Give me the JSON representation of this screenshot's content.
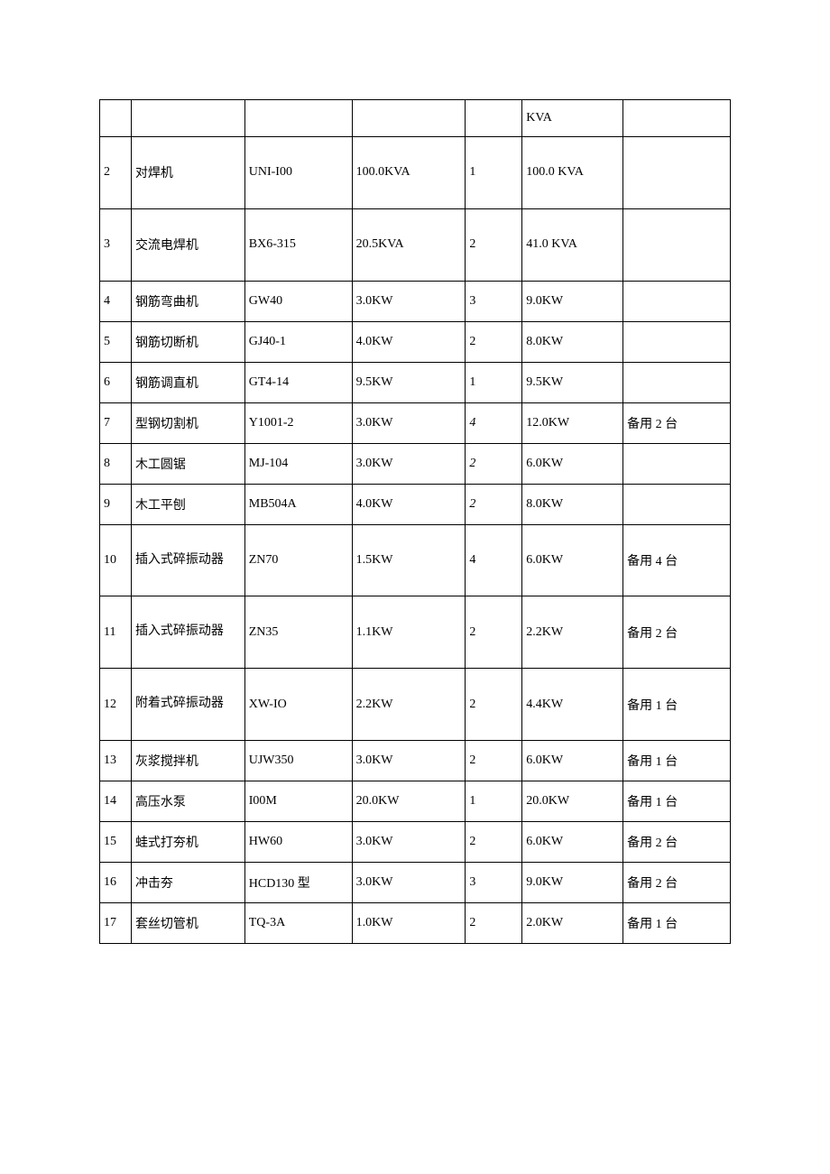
{
  "table": {
    "columns": [
      {
        "width": "5%"
      },
      {
        "width": "18%"
      },
      {
        "width": "17%"
      },
      {
        "width": "18%"
      },
      {
        "width": "9%"
      },
      {
        "width": "16%"
      },
      {
        "width": "17%"
      }
    ],
    "border_color": "#000000",
    "background_color": "#ffffff",
    "text_color": "#000000",
    "font_size": 14,
    "rows": [
      {
        "cells": [
          "",
          "",
          "",
          "",
          "",
          "KVA",
          ""
        ],
        "tall": false
      },
      {
        "cells": [
          "2",
          "对焊机",
          "UNI-I00",
          "100.0KVA",
          "1",
          "100.0 KVA",
          ""
        ],
        "tall": true,
        "multiline_col": 5
      },
      {
        "cells": [
          "3",
          "交流电焊机",
          "BX6-315",
          "20.5KVA",
          "2",
          "41.0 KVA",
          ""
        ],
        "tall": true,
        "multiline_col": 5
      },
      {
        "cells": [
          "4",
          "钢筋弯曲机",
          "GW40",
          "3.0KW",
          "3",
          "9.0KW",
          ""
        ],
        "tall": false
      },
      {
        "cells": [
          "5",
          "钢筋切断机",
          "GJ40-1",
          "4.0KW",
          "2",
          "8.0KW",
          ""
        ],
        "tall": false
      },
      {
        "cells": [
          "6",
          "钢筋调直机",
          "GT4-14",
          "9.5KW",
          "1",
          "9.5KW",
          ""
        ],
        "tall": false
      },
      {
        "cells": [
          "7",
          "型钢切割机",
          "Y1001-2",
          "3.0KW",
          "4",
          "12.0KW",
          "备用 2 台"
        ],
        "tall": false,
        "italic_col": 4
      },
      {
        "cells": [
          "8",
          "木工圆锯",
          "MJ-104",
          "3.0KW",
          "2",
          "6.0KW",
          ""
        ],
        "tall": false,
        "italic_col": 4
      },
      {
        "cells": [
          "9",
          "木工平刨",
          "MB504A",
          "4.0KW",
          "2",
          "8.0KW",
          ""
        ],
        "tall": false,
        "italic_col": 4
      },
      {
        "cells": [
          "10",
          "插入式碎振动器",
          "ZN70",
          "1.5KW",
          "4",
          "6.0KW",
          "备用 4 台"
        ],
        "tall": true,
        "multiline_col": 1
      },
      {
        "cells": [
          "11",
          "插入式碎振动器",
          "ZN35",
          "1.1KW",
          "2",
          "2.2KW",
          "备用 2 台"
        ],
        "tall": true,
        "multiline_col": 1
      },
      {
        "cells": [
          "12",
          "附着式碎振动器",
          "XW-IO",
          "2.2KW",
          "2",
          "4.4KW",
          "备用 1 台"
        ],
        "tall": true,
        "multiline_col": 1
      },
      {
        "cells": [
          "13",
          "灰浆搅拌机",
          "UJW350",
          "3.0KW",
          "2",
          "6.0KW",
          "备用 1 台"
        ],
        "tall": false
      },
      {
        "cells": [
          "14",
          "高压水泵",
          "I00M",
          "20.0KW",
          "1",
          "20.0KW",
          "备用 1 台"
        ],
        "tall": false
      },
      {
        "cells": [
          "15",
          "蛙式打夯机",
          "HW60",
          "3.0KW",
          "2",
          "6.0KW",
          "备用 2 台"
        ],
        "tall": false
      },
      {
        "cells": [
          "16",
          "冲击夯",
          "HCD130 型",
          "3.0KW",
          "3",
          "9.0KW",
          "备用 2 台"
        ],
        "tall": false
      },
      {
        "cells": [
          "17",
          "套丝切管机",
          "TQ-3A",
          "1.0KW",
          "2",
          "2.0KW",
          "备用 1 台"
        ],
        "tall": false
      }
    ]
  }
}
